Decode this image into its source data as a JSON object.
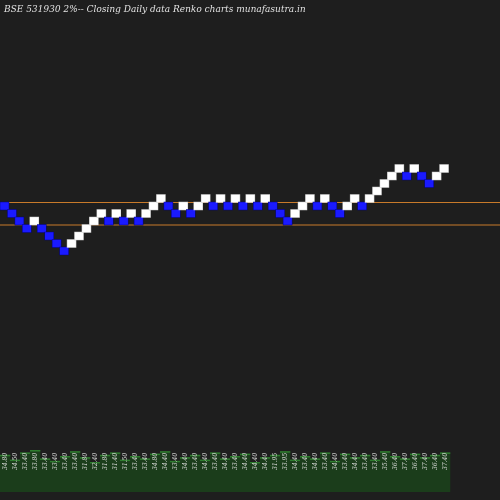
{
  "title": "BSE 531930  2%--  Closing Daily data  Renko  charts munafasutra.in",
  "colors": {
    "background": "#1e1e1e",
    "up_brick": "#ffffff",
    "down_brick": "#1a1aff",
    "support_line": "#c87a2a",
    "volume_fill": "#1b3d1b",
    "volume_top": "#2e7d2e"
  },
  "chart_data": {
    "type": "renko",
    "box_size_pct": 2,
    "bricks": [
      {
        "level": 13,
        "dir": "down"
      },
      {
        "level": 12,
        "dir": "down"
      },
      {
        "level": 11,
        "dir": "down"
      },
      {
        "level": 10,
        "dir": "down"
      },
      {
        "level": 11,
        "dir": "up"
      },
      {
        "level": 10,
        "dir": "down"
      },
      {
        "level": 9,
        "dir": "down"
      },
      {
        "level": 8,
        "dir": "down"
      },
      {
        "level": 7,
        "dir": "down"
      },
      {
        "level": 8,
        "dir": "up"
      },
      {
        "level": 9,
        "dir": "up"
      },
      {
        "level": 10,
        "dir": "up"
      },
      {
        "level": 11,
        "dir": "up"
      },
      {
        "level": 12,
        "dir": "up"
      },
      {
        "level": 11,
        "dir": "down"
      },
      {
        "level": 12,
        "dir": "up"
      },
      {
        "level": 11,
        "dir": "down"
      },
      {
        "level": 12,
        "dir": "up"
      },
      {
        "level": 11,
        "dir": "down"
      },
      {
        "level": 12,
        "dir": "up"
      },
      {
        "level": 13,
        "dir": "up"
      },
      {
        "level": 14,
        "dir": "up"
      },
      {
        "level": 13,
        "dir": "down"
      },
      {
        "level": 12,
        "dir": "down"
      },
      {
        "level": 13,
        "dir": "up"
      },
      {
        "level": 12,
        "dir": "down"
      },
      {
        "level": 13,
        "dir": "up"
      },
      {
        "level": 14,
        "dir": "up"
      },
      {
        "level": 13,
        "dir": "down"
      },
      {
        "level": 14,
        "dir": "up"
      },
      {
        "level": 13,
        "dir": "down"
      },
      {
        "level": 14,
        "dir": "up"
      },
      {
        "level": 13,
        "dir": "down"
      },
      {
        "level": 14,
        "dir": "up"
      },
      {
        "level": 13,
        "dir": "down"
      },
      {
        "level": 14,
        "dir": "up"
      },
      {
        "level": 13,
        "dir": "down"
      },
      {
        "level": 12,
        "dir": "down"
      },
      {
        "level": 11,
        "dir": "down"
      },
      {
        "level": 12,
        "dir": "up"
      },
      {
        "level": 13,
        "dir": "up"
      },
      {
        "level": 14,
        "dir": "up"
      },
      {
        "level": 13,
        "dir": "down"
      },
      {
        "level": 14,
        "dir": "up"
      },
      {
        "level": 13,
        "dir": "down"
      },
      {
        "level": 12,
        "dir": "down"
      },
      {
        "level": 13,
        "dir": "up"
      },
      {
        "level": 14,
        "dir": "up"
      },
      {
        "level": 13,
        "dir": "down"
      },
      {
        "level": 14,
        "dir": "up"
      },
      {
        "level": 15,
        "dir": "up"
      },
      {
        "level": 16,
        "dir": "up"
      },
      {
        "level": 17,
        "dir": "up"
      },
      {
        "level": 18,
        "dir": "up"
      },
      {
        "level": 17,
        "dir": "down"
      },
      {
        "level": 18,
        "dir": "up"
      },
      {
        "level": 17,
        "dir": "down"
      },
      {
        "level": 16,
        "dir": "down"
      },
      {
        "level": 17,
        "dir": "up"
      },
      {
        "level": 18,
        "dir": "up"
      }
    ],
    "support_lines": [
      14,
      11
    ],
    "volume_labels": [
      "34.80",
      "34.50",
      "33.40",
      "33.80",
      "33.40",
      "33.40",
      "33.40",
      "33.40",
      "31.80",
      "32.40",
      "31.80",
      "31.40",
      "31.50",
      "33.40",
      "33.40",
      "34.80",
      "34.40",
      "33.40",
      "34.40",
      "33.40",
      "34.40",
      "33.40",
      "34.40",
      "33.40",
      "34.40",
      "34.40",
      "34.40",
      "31.95",
      "33.95",
      "34.40",
      "33.40",
      "34.40",
      "33.40",
      "34.40",
      "33.40",
      "34.40",
      "33.40",
      "33.40",
      "35.40",
      "36.40",
      "37.40",
      "36.40",
      "37.40",
      "36.40",
      "37.40"
    ],
    "volume_bars": [
      1.6,
      1.2,
      1.8,
      2.0,
      1.3,
      1.1,
      1.5,
      1.9,
      1.4,
      1.0,
      1.6,
      1.8,
      1.2,
      1.5,
      1.3,
      1.7,
      1.9,
      1.1,
      1.4,
      1.6,
      1.2,
      1.8,
      1.3,
      1.5,
      1.7,
      1.0,
      1.4,
      1.6,
      1.9,
      1.2,
      1.5,
      1.3,
      1.8,
      1.1,
      1.7,
      1.4,
      1.6,
      1.2,
      1.9,
      1.5,
      1.3,
      1.7,
      1.4,
      1.6,
      1.8
    ]
  }
}
